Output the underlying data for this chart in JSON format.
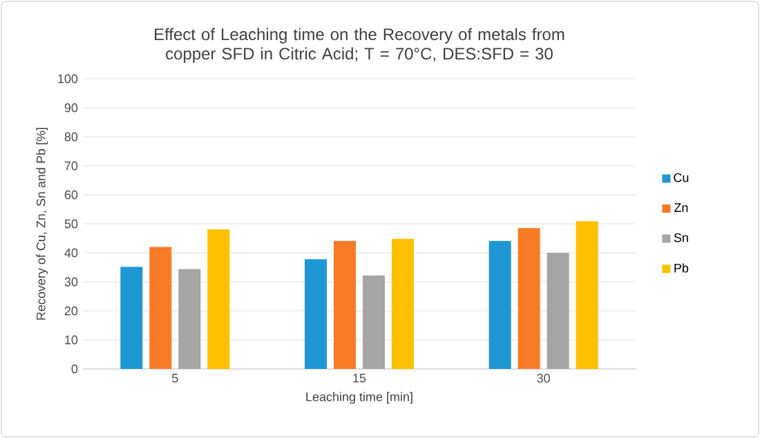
{
  "chart_data": {
    "type": "bar",
    "title": "Effect of Leaching time on the Recovery of metals from copper SFD in Citric Acid; T = 70°C, DES:SFD = 30",
    "xlabel": "Leaching time [min]",
    "ylabel": "Recovery of Cu, Zn, Sn and Pb  [%]",
    "categories": [
      "5",
      "15",
      "30"
    ],
    "series": [
      {
        "name": "Cu",
        "color": "#1f97d4",
        "values": [
          35.2,
          37.8,
          44.1
        ]
      },
      {
        "name": "Zn",
        "color": "#f97a26",
        "values": [
          42.0,
          44.1,
          48.5
        ]
      },
      {
        "name": "Sn",
        "color": "#a5a5a5",
        "values": [
          34.4,
          32.2,
          40.0
        ]
      },
      {
        "name": "Pb",
        "color": "#ffc000",
        "values": [
          48.1,
          44.8,
          50.9
        ]
      }
    ],
    "ylim": [
      0,
      100
    ],
    "yticks": [
      0,
      10,
      20,
      30,
      40,
      50,
      60,
      70,
      80,
      90,
      100
    ],
    "grid": "y",
    "legend": "right"
  }
}
